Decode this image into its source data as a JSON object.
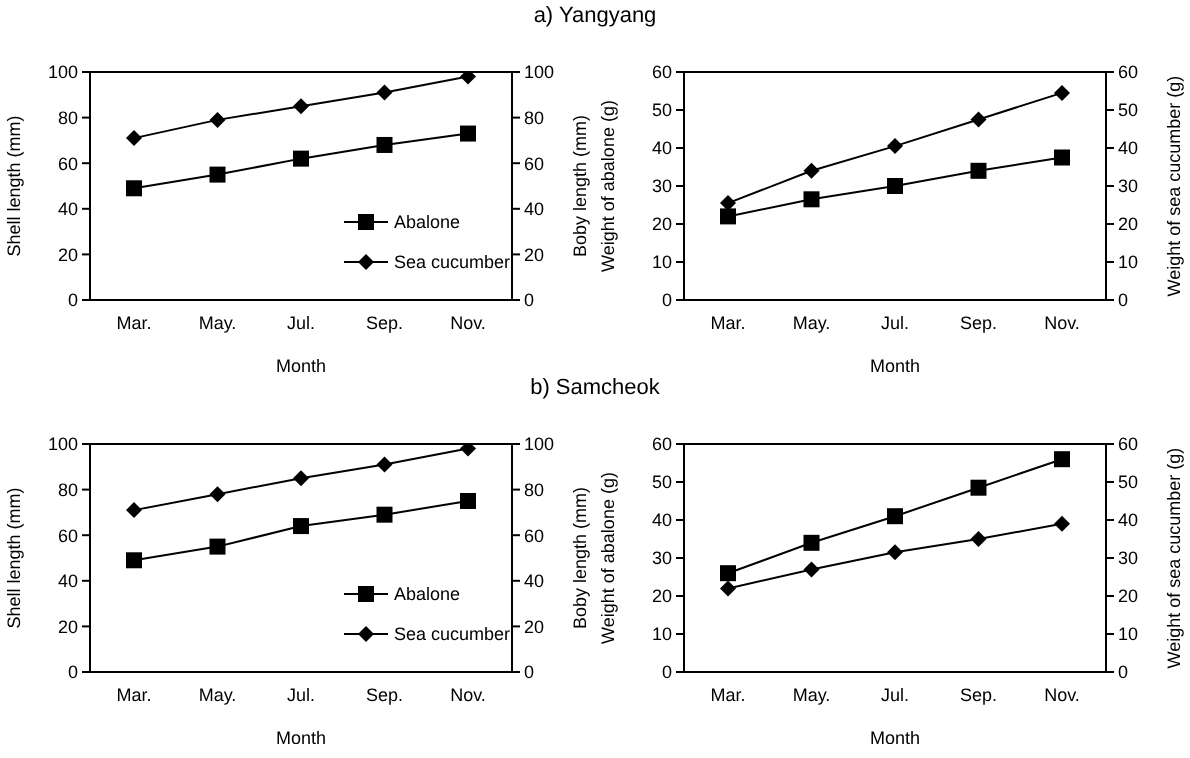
{
  "chart_data": [
    {
      "type": "line",
      "title": "a) Yangyang",
      "categories": [
        "Mar.",
        "May.",
        "Jul.",
        "Sep.",
        "Nov."
      ],
      "xlabel": "Month",
      "ylabel": "Shell length (mm)",
      "y2label": "Boby length (mm)",
      "ylim": [
        0,
        100
      ],
      "yticks": [
        0,
        20,
        40,
        60,
        80,
        100
      ],
      "y2lim": [
        0,
        100
      ],
      "y2ticks": [
        0,
        20,
        40,
        60,
        80,
        100
      ],
      "grid": false,
      "legend": "bottom right",
      "series": [
        {
          "name": "Abalone",
          "color": "#000000",
          "marker": "square",
          "values": [
            49,
            55,
            62,
            68,
            73
          ]
        },
        {
          "name": "Sea cucumber",
          "color": "#000000",
          "marker": "diamond",
          "axis": "y2",
          "values": [
            71,
            79,
            85,
            91,
            98
          ]
        }
      ]
    },
    {
      "type": "line",
      "categories": [
        "Mar.",
        "May.",
        "Jul.",
        "Sep.",
        "Nov."
      ],
      "xlabel": "Month",
      "ylabel": "Weight of abalone (g)",
      "y2label": "Weight of sea cucumber (g)",
      "ylim": [
        0,
        60
      ],
      "yticks": [
        0,
        10,
        20,
        30,
        40,
        50,
        60
      ],
      "y2lim": [
        0,
        60
      ],
      "y2ticks": [
        0,
        10,
        20,
        30,
        40,
        50,
        60
      ],
      "grid": false,
      "legend": false,
      "series": [
        {
          "color": "#000000",
          "marker": "square",
          "values": [
            22,
            26.5,
            30,
            34,
            37.5
          ]
        },
        {
          "color": "#000000",
          "marker": "diamond",
          "axis": "y2",
          "values": [
            25.5,
            34,
            40.5,
            47.5,
            54.5
          ]
        }
      ]
    },
    {
      "type": "line",
      "title": "b) Samcheok",
      "categories": [
        "Mar.",
        "May.",
        "Jul.",
        "Sep.",
        "Nov."
      ],
      "xlabel": "Month",
      "ylabel": "Shell length (mm)",
      "y2label": "Boby length (mm)",
      "ylim": [
        0,
        100
      ],
      "yticks": [
        0,
        20,
        40,
        60,
        80,
        100
      ],
      "y2lim": [
        0,
        100
      ],
      "y2ticks": [
        0,
        20,
        40,
        60,
        80,
        100
      ],
      "grid": false,
      "legend": "bottom right",
      "series": [
        {
          "name": "Abalone",
          "color": "#000000",
          "marker": "square",
          "values": [
            49,
            55,
            64,
            69,
            75
          ]
        },
        {
          "name": "Sea cucumber",
          "color": "#000000",
          "marker": "diamond",
          "axis": "y2",
          "values": [
            71,
            78,
            85,
            91,
            98
          ]
        }
      ]
    },
    {
      "type": "line",
      "categories": [
        "Mar.",
        "May.",
        "Jul.",
        "Sep.",
        "Nov."
      ],
      "xlabel": "Month",
      "ylabel": "Weight of abalone (g)",
      "y2label": "Weight of sea cucumber (g)",
      "ylim": [
        0,
        60
      ],
      "yticks": [
        0,
        10,
        20,
        30,
        40,
        50,
        60
      ],
      "y2lim": [
        0,
        60
      ],
      "y2ticks": [
        0,
        10,
        20,
        30,
        40,
        50,
        60
      ],
      "grid": false,
      "legend": false,
      "series": [
        {
          "color": "#000000",
          "marker": "square",
          "values": [
            26,
            34,
            41,
            48.5,
            56
          ]
        },
        {
          "color": "#000000",
          "marker": "diamond",
          "axis": "y2",
          "values": [
            22,
            27,
            31.5,
            35,
            39
          ]
        }
      ]
    }
  ]
}
